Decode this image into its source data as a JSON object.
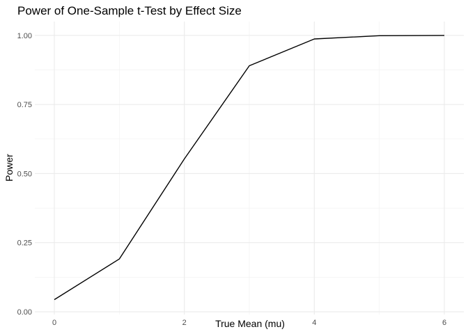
{
  "chart_data": {
    "type": "line",
    "title": "Power of One-Sample t-Test by Effect Size",
    "xlabel": "True Mean (mu)",
    "ylabel": "Power",
    "xlim": [
      -0.3,
      6.3
    ],
    "ylim": [
      -0.01,
      1.05
    ],
    "grid": true,
    "x_ticks": [
      0,
      2,
      4,
      6
    ],
    "x_tick_labels": [
      "0",
      "2",
      "4",
      "6"
    ],
    "x_minor_ticks": [
      1,
      3,
      5
    ],
    "y_ticks": [
      0,
      0.25,
      0.5,
      0.75,
      1.0
    ],
    "y_tick_labels": [
      "0.00",
      "0.25",
      "0.50",
      "0.75",
      "1.00"
    ],
    "y_minor_ticks": [
      0.125,
      0.375,
      0.625,
      0.875
    ],
    "series": [
      {
        "x": [
          0,
          1,
          2,
          3,
          4,
          5,
          6
        ],
        "y": [
          0.044,
          0.191,
          0.553,
          0.89,
          0.987,
          0.999,
          1.0
        ]
      }
    ],
    "colors": {
      "line": "#000000",
      "grid_major": "#ebebeb",
      "grid_minor": "#f2f2f2",
      "tick_text": "#4d4d4d"
    }
  }
}
